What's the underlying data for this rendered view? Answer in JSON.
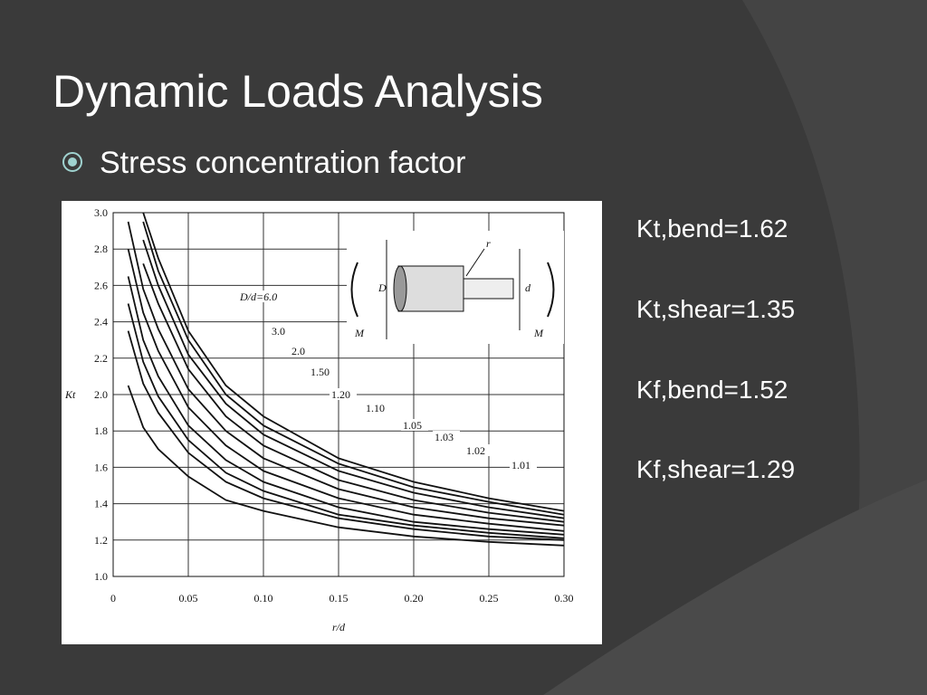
{
  "slide": {
    "title": "Dynamic Loads Analysis",
    "bullet": "Stress concentration factor",
    "results": [
      "Kt,bend=1.62",
      "Kt,shear=1.35",
      "Kf,bend=1.52",
      "Kf,shear=1.29"
    ]
  },
  "inset_labels": {
    "outer": "D",
    "inner": "d",
    "fillet": "r",
    "moment_left": "M",
    "moment_right": "M"
  },
  "chart_data": {
    "type": "line",
    "x_label": "r/d",
    "y_label": "Kt",
    "x": [
      0.01,
      0.02,
      0.03,
      0.05,
      0.075,
      0.1,
      0.15,
      0.2,
      0.25,
      0.3
    ],
    "series": [
      {
        "name": "D/d=6.0",
        "color": "#111111",
        "values": [
          null,
          3.0,
          2.75,
          2.35,
          2.05,
          1.88,
          1.65,
          1.52,
          1.43,
          1.36
        ]
      },
      {
        "name": "3.0",
        "color": "#111111",
        "values": [
          null,
          2.95,
          2.68,
          2.3,
          2.0,
          1.83,
          1.62,
          1.49,
          1.41,
          1.34
        ]
      },
      {
        "name": "2.0",
        "color": "#111111",
        "values": [
          null,
          2.85,
          2.6,
          2.22,
          1.95,
          1.78,
          1.58,
          1.46,
          1.38,
          1.32
        ]
      },
      {
        "name": "1.50",
        "color": "#111111",
        "values": [
          null,
          2.72,
          2.5,
          2.14,
          1.88,
          1.72,
          1.53,
          1.42,
          1.35,
          1.3
        ]
      },
      {
        "name": "1.20",
        "color": "#111111",
        "values": [
          2.95,
          2.58,
          2.36,
          2.03,
          1.8,
          1.65,
          1.48,
          1.38,
          1.32,
          1.28
        ]
      },
      {
        "name": "1.10",
        "color": "#111111",
        "values": [
          2.8,
          2.45,
          2.24,
          1.93,
          1.72,
          1.58,
          1.43,
          1.34,
          1.29,
          1.25
        ]
      },
      {
        "name": "1.05",
        "color": "#111111",
        "values": [
          2.65,
          2.3,
          2.1,
          1.83,
          1.64,
          1.52,
          1.38,
          1.3,
          1.26,
          1.23
        ]
      },
      {
        "name": "1.03",
        "color": "#111111",
        "values": [
          2.5,
          2.18,
          1.99,
          1.75,
          1.57,
          1.47,
          1.34,
          1.28,
          1.24,
          1.21
        ]
      },
      {
        "name": "1.02",
        "color": "#111111",
        "values": [
          2.35,
          2.06,
          1.9,
          1.68,
          1.52,
          1.43,
          1.32,
          1.26,
          1.22,
          1.2
        ]
      },
      {
        "name": "1.01",
        "color": "#111111",
        "values": [
          2.05,
          1.82,
          1.7,
          1.55,
          1.42,
          1.36,
          1.27,
          1.22,
          1.19,
          1.17
        ]
      }
    ],
    "xlim": [
      0,
      0.3
    ],
    "xticks": [
      0,
      0.05,
      {
        "value": 0.1,
        "label": "0.10"
      },
      0.15,
      {
        "value": 0.2,
        "label": "0.20"
      },
      0.25,
      {
        "value": 0.3,
        "label": "0.30"
      }
    ],
    "ylim": [
      1,
      3
    ],
    "yticks": [
      {
        "value": 1,
        "label": "1.0"
      },
      {
        "value": 1.2,
        "label": "1.2"
      },
      {
        "value": 1.4,
        "label": "1.4"
      },
      {
        "value": 1.6,
        "label": "1.6"
      },
      {
        "value": 1.8,
        "label": "1.8"
      },
      {
        "value": 2,
        "label": "2.0"
      },
      {
        "value": 2.2,
        "label": "2.2"
      },
      {
        "value": 2.4,
        "label": "2.4"
      },
      {
        "value": 2.6,
        "label": "2.6"
      },
      {
        "value": 2.8,
        "label": "2.8"
      },
      {
        "value": 3,
        "label": "3.0"
      }
    ],
    "grid": true
  }
}
